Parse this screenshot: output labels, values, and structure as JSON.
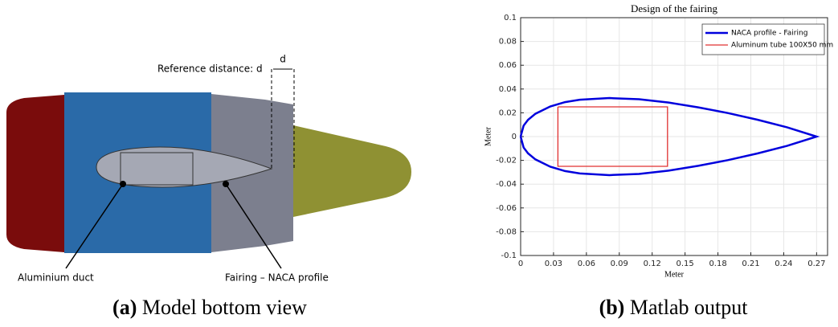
{
  "panel_a": {
    "labels": {
      "reference": "Reference distance: d",
      "d": "d",
      "duct": "Aluminium duct",
      "fairing": "Fairing – NACA profile"
    },
    "caption_label": "(a)",
    "caption": "Model bottom view"
  },
  "panel_b": {
    "caption_label": "(b)",
    "caption": "Matlab output"
  },
  "chart_data": {
    "type": "line",
    "title": "Design of the fairing",
    "xlabel": "Meter",
    "ylabel": "Meter",
    "xlim": [
      0,
      0.28
    ],
    "ylim": [
      -0.1,
      0.1
    ],
    "xticks": [
      0,
      0.03,
      0.06,
      0.09,
      0.12,
      0.15,
      0.18,
      0.21,
      0.24,
      0.27
    ],
    "yticks": [
      -0.1,
      -0.08,
      -0.06,
      -0.04,
      -0.02,
      0,
      0.02,
      0.04,
      0.06,
      0.08,
      0.1
    ],
    "grid": true,
    "legend": "upper right",
    "series": [
      {
        "name": "NACA profile - Fairing",
        "color": "#0000dd",
        "x": [
          0,
          0.0027,
          0.00675,
          0.0135,
          0.027,
          0.0405,
          0.054,
          0.081,
          0.108,
          0.135,
          0.162,
          0.189,
          0.216,
          0.243,
          0.27,
          0.243,
          0.216,
          0.189,
          0.162,
          0.135,
          0.108,
          0.081,
          0.054,
          0.0405,
          0.027,
          0.0135,
          0.00675,
          0.0027,
          0
        ],
        "values": [
          0,
          0.0092,
          0.0141,
          0.0192,
          0.0253,
          0.029,
          0.031,
          0.0324,
          0.0314,
          0.0286,
          0.0246,
          0.0198,
          0.0142,
          0.0078,
          0,
          -0.0078,
          -0.0142,
          -0.0198,
          -0.0246,
          -0.0286,
          -0.0314,
          -0.0324,
          -0.031,
          -0.029,
          -0.0253,
          -0.0192,
          -0.0141,
          -0.0092,
          0
        ]
      },
      {
        "name": "Aluminum tube 100X50 mm",
        "color": "#e03030",
        "x": [
          0.034,
          0.134,
          0.134,
          0.034,
          0.034
        ],
        "values": [
          0.025,
          0.025,
          -0.025,
          -0.025,
          0.025
        ]
      }
    ]
  }
}
